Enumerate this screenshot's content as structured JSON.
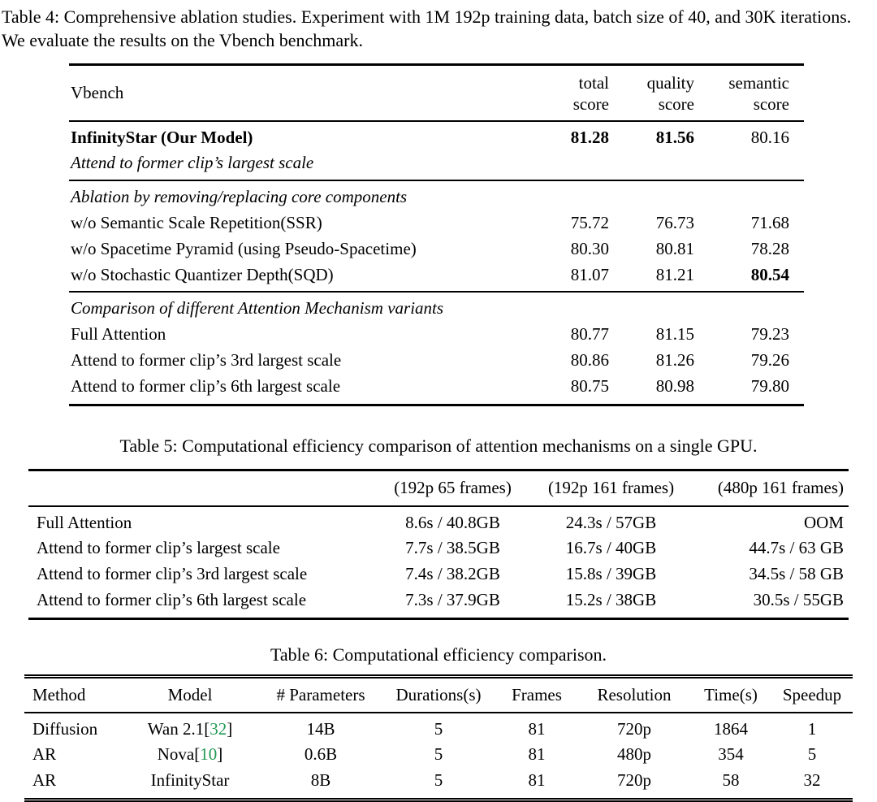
{
  "page": {
    "background_color": "#ffffff",
    "text_color": "#000000",
    "citation_color": "#229954"
  },
  "table4": {
    "caption": "Table 4: Comprehensive ablation studies. Experiment with 1M 192p training data, batch size of 40, and 30K iterations. We evaluate the results on the Vbench benchmark.",
    "header": {
      "col0": "Vbench",
      "col1_line1": "total",
      "col1_line2": "score",
      "col2_line1": "quality",
      "col2_line2": "score",
      "col3_line1": "semantic",
      "col3_line2": "score"
    },
    "main_row": {
      "label": "InfinityStar (Our Model)",
      "total": "81.28",
      "quality": "81.56",
      "semantic": "80.16"
    },
    "note_row": "Attend to former clip’s largest scale",
    "section1_title": "Ablation by removing/replacing core components",
    "section1_rows": [
      {
        "label": "w/o Semantic Scale Repetition(SSR)",
        "total": "75.72",
        "quality": "76.73",
        "semantic": "71.68"
      },
      {
        "label": "w/o Spacetime Pyramid (using Pseudo-Spacetime)",
        "total": "80.30",
        "quality": "80.81",
        "semantic": "78.28"
      },
      {
        "label": "w/o Stochastic Quantizer Depth(SQD)",
        "total": "81.07",
        "quality": "81.21",
        "semantic": "80.54"
      }
    ],
    "section2_title": "Comparison of different Attention Mechanism variants",
    "section2_rows": [
      {
        "label": "Full Attention",
        "total": "80.77",
        "quality": "81.15",
        "semantic": "79.23"
      },
      {
        "label": "Attend to former clip’s 3rd largest scale",
        "total": "80.86",
        "quality": "81.26",
        "semantic": "79.26"
      },
      {
        "label": "Attend to former clip’s 6th largest scale",
        "total": "80.75",
        "quality": "80.98",
        "semantic": "79.80"
      }
    ]
  },
  "table5": {
    "caption": "Table 5: Computational efficiency comparison of attention mechanisms on a single GPU.",
    "headers": {
      "col1": "(192p 65 frames)",
      "col2": "(192p 161 frames)",
      "col3": "(480p 161 frames)"
    },
    "rows": [
      {
        "label": "Full Attention",
        "c1": "8.6s / 40.8GB",
        "c2": "24.3s / 57GB",
        "c3": "OOM"
      },
      {
        "label": "Attend to former clip’s largest scale",
        "c1": "7.7s / 38.5GB",
        "c2": "16.7s / 40GB",
        "c3": "44.7s / 63 GB"
      },
      {
        "label": "Attend to former clip’s 3rd largest scale",
        "c1": "7.4s / 38.2GB",
        "c2": "15.8s / 39GB",
        "c3": "34.5s / 58 GB"
      },
      {
        "label": "Attend to former clip’s 6th largest scale",
        "c1": "7.3s / 37.9GB",
        "c2": "15.2s / 38GB",
        "c3": "30.5s / 55GB"
      }
    ]
  },
  "table6": {
    "caption": "Table 6: Computational efficiency comparison.",
    "headers": {
      "method": "Method",
      "model": "Model",
      "params": "# Parameters",
      "duration": "Durations(s)",
      "frames": "Frames",
      "resolution": "Resolution",
      "time": "Time(s)",
      "speedup": "Speedup"
    },
    "rows": [
      {
        "method": "Diffusion",
        "model_pre": "Wan 2.1[",
        "model_cite": "32",
        "model_post": "]",
        "params": "14B",
        "duration": "5",
        "frames": "81",
        "resolution": "720p",
        "time": "1864",
        "speedup": "1"
      },
      {
        "method": "AR",
        "model_pre": "Nova[",
        "model_cite": "10",
        "model_post": "]",
        "params": "0.6B",
        "duration": "5",
        "frames": "81",
        "resolution": "480p",
        "time": "354",
        "speedup": "5"
      },
      {
        "method": "AR",
        "model_pre": "InfinityStar",
        "model_cite": "",
        "model_post": "",
        "params": "8B",
        "duration": "5",
        "frames": "81",
        "resolution": "720p",
        "time": "58",
        "speedup": "32"
      }
    ]
  }
}
